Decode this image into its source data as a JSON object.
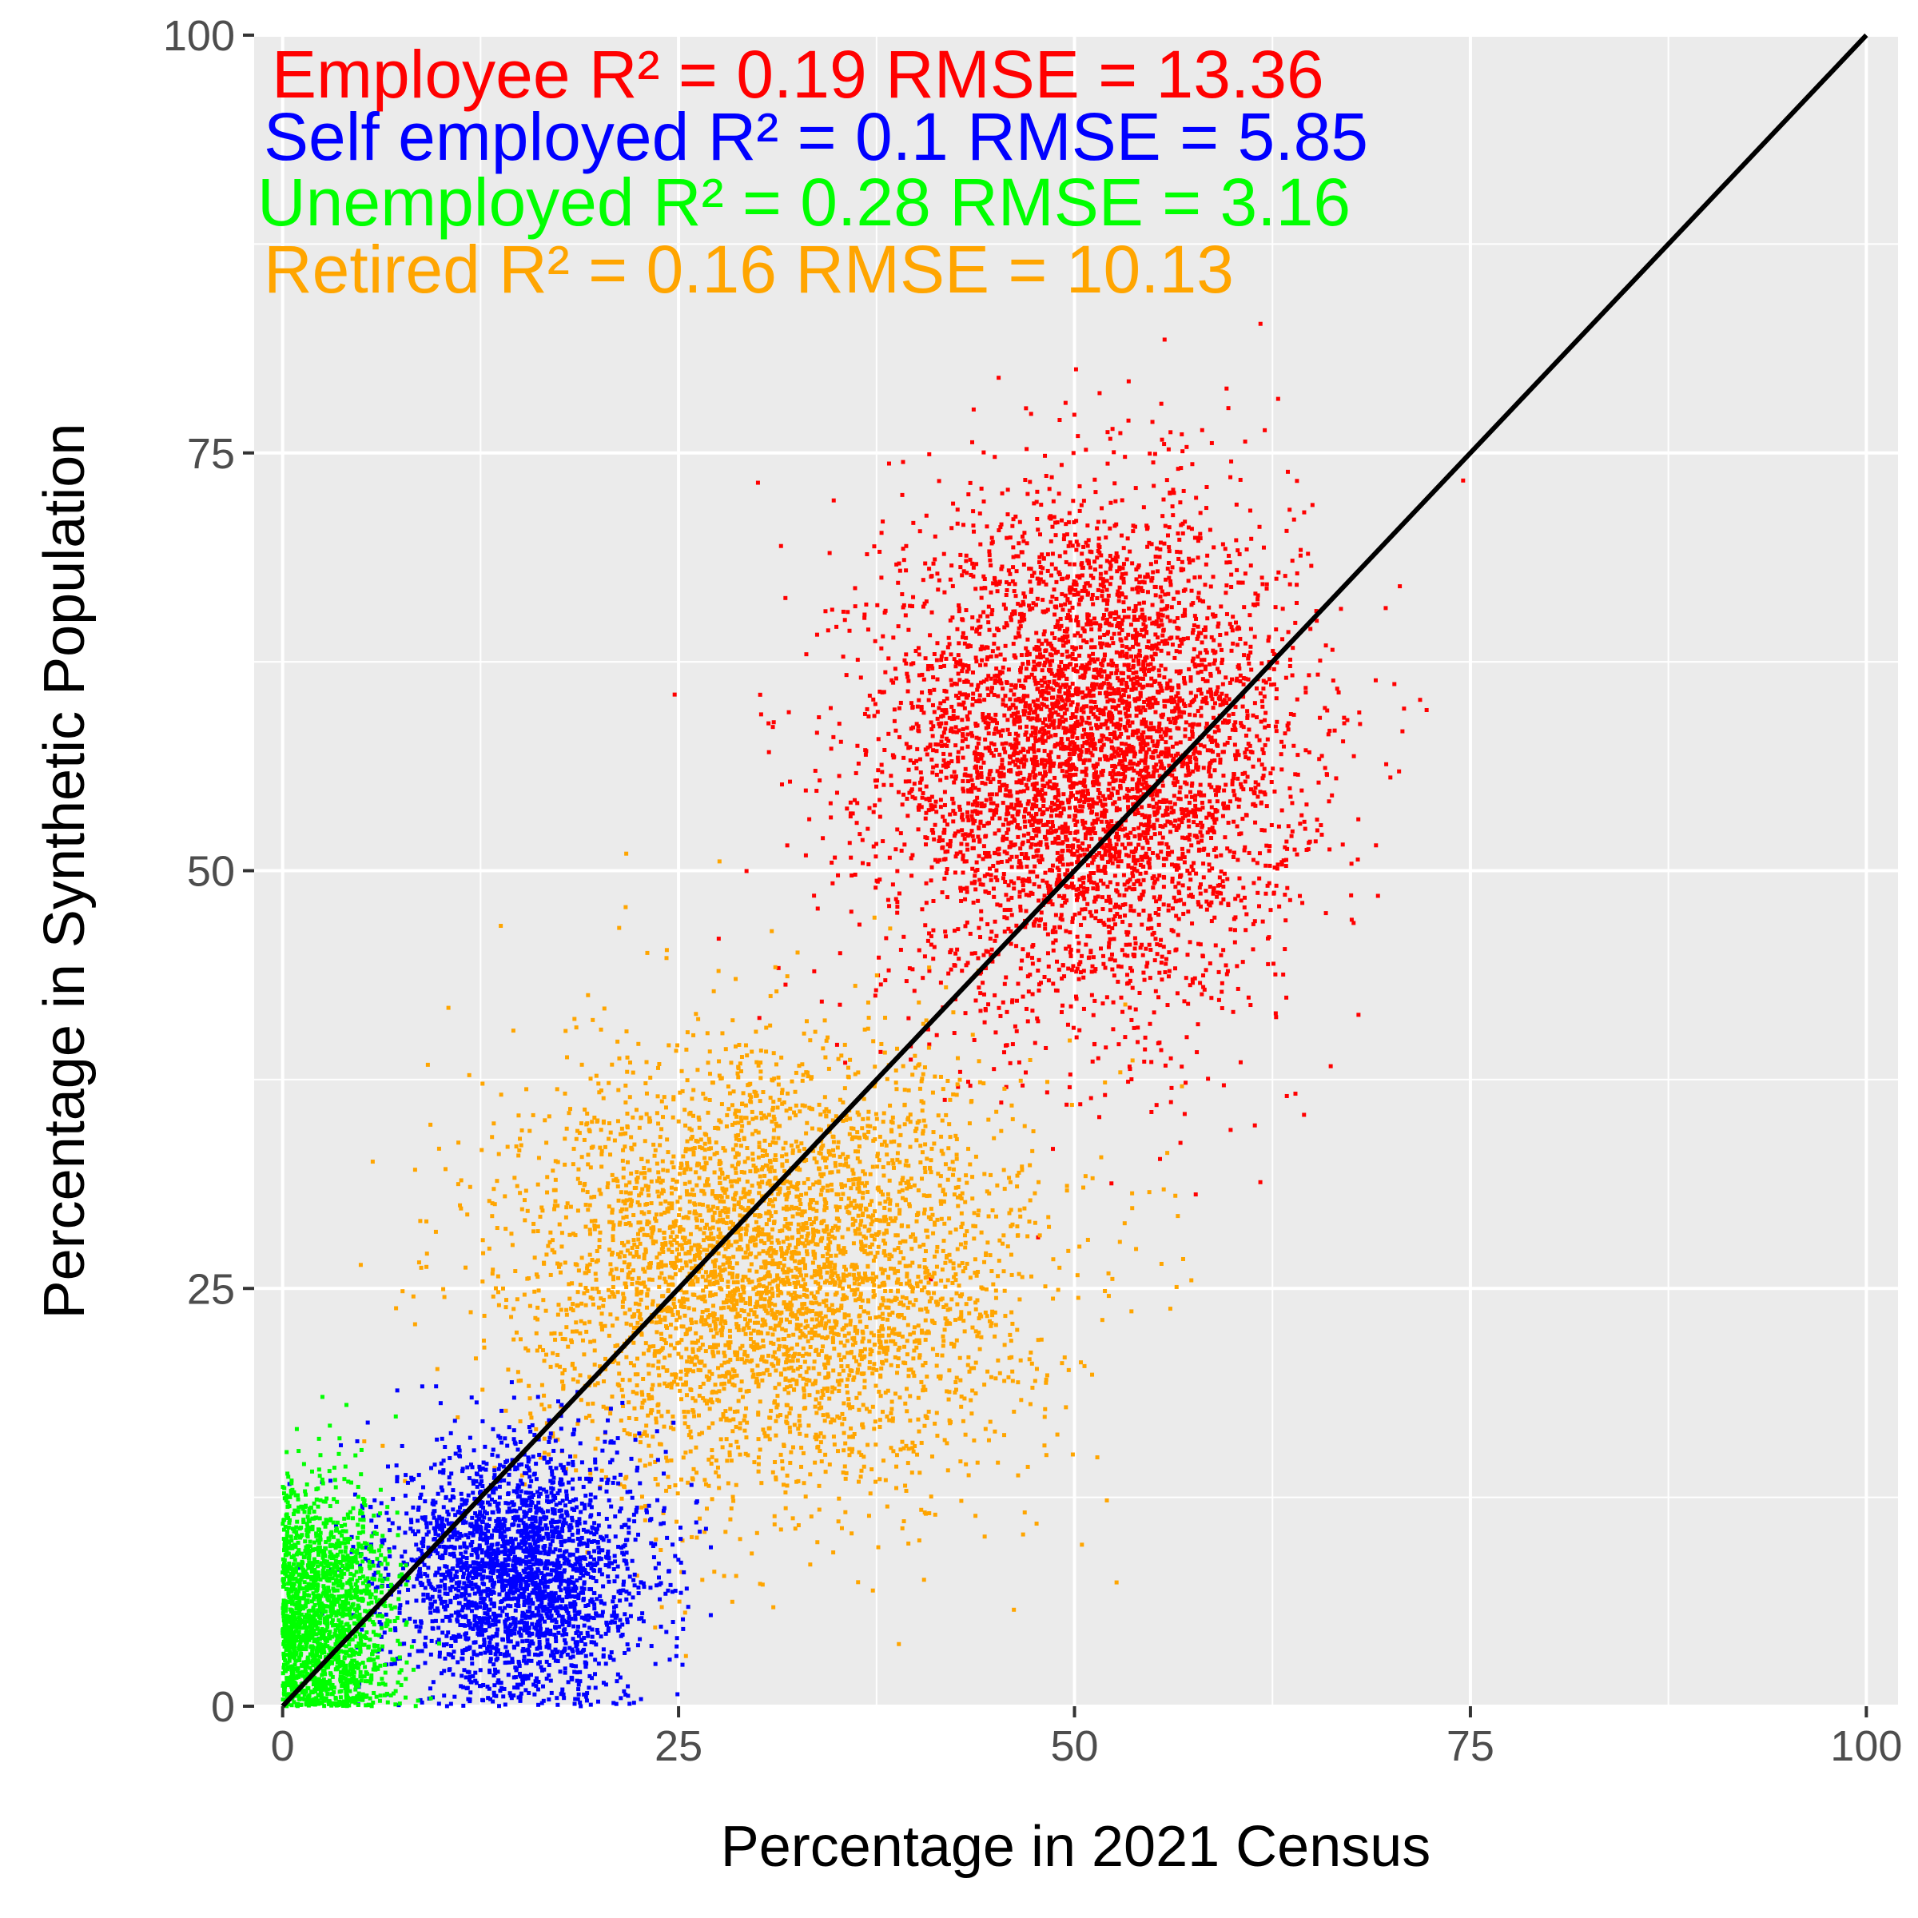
{
  "chart_data": {
    "type": "scatter",
    "title": "",
    "xlabel": "Percentage in 2021 Census",
    "ylabel": "Percentage in Synthetic Population",
    "xlim": [
      -1.8,
      102
    ],
    "ylim": [
      0,
      100
    ],
    "x_ticks": [
      0,
      25,
      50,
      75,
      100
    ],
    "y_ticks": [
      0,
      25,
      50,
      75,
      100
    ],
    "x_tick_labels": [
      "0",
      "25",
      "50",
      "75",
      "100"
    ],
    "y_tick_labels": [
      "0",
      "25",
      "50",
      "75",
      "100"
    ],
    "grid": true,
    "background": "#ebebeb",
    "reference_line": {
      "x": [
        0,
        100
      ],
      "y": [
        0,
        100
      ],
      "color": "#000000"
    },
    "series": [
      {
        "name": "Employee",
        "color": "#ff0000",
        "center": [
          51,
          57
        ],
        "spread": [
          6.5,
          7.5
        ],
        "r2": "0.19",
        "rmse": "13.36",
        "count": 5000
      },
      {
        "name": "Retired",
        "color": "#ffa500",
        "center": [
          31,
          26
        ],
        "spread": [
          8,
          6.5
        ],
        "r2": "0.16",
        "rmse": "10.13",
        "count": 4200
      },
      {
        "name": "Self employed",
        "color": "#0000ff",
        "center": [
          15,
          8
        ],
        "spread": [
          4,
          3.8
        ],
        "r2": "0.1",
        "rmse": "5.85",
        "count": 2600
      },
      {
        "name": "Unemployed",
        "color": "#00ff00",
        "center": [
          2.5,
          5
        ],
        "spread": [
          2.2,
          4
        ],
        "r2": "0.28",
        "rmse": "3.16",
        "count": 1800
      }
    ],
    "annotations": [
      {
        "text": "Employee R² = 0.19   RMSE = 13.36",
        "color": "#ff0000"
      },
      {
        "text": "Self employed R² = 0.1  RMSE = 5.85",
        "color": "#0000ff"
      },
      {
        "text": "Unemployed R² = 0.28  RMSE = 3.16",
        "color": "#00ff00"
      },
      {
        "text": "Retired R² = 0.16  RMSE = 10.13",
        "color": "#ffa500"
      }
    ]
  }
}
